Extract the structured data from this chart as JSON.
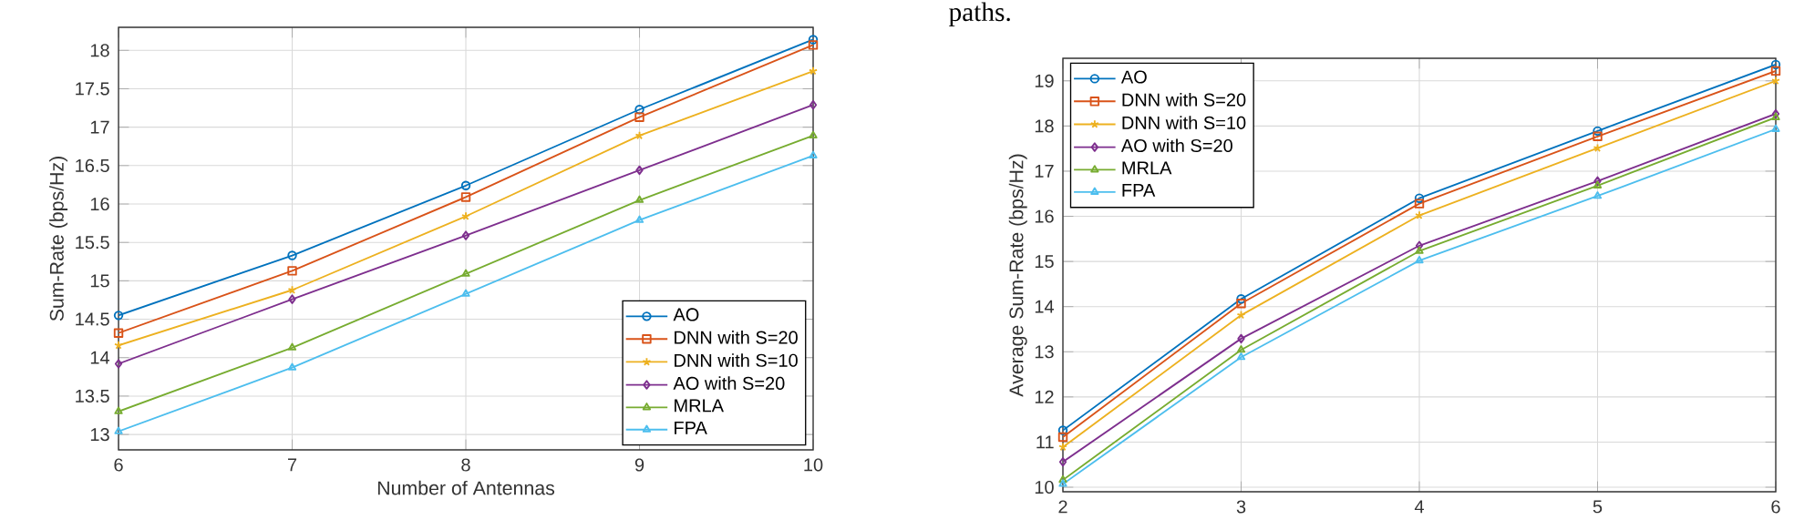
{
  "chart_data": [
    {
      "type": "line",
      "xlabel": "Number of Antennas",
      "ylabel": "Sum-Rate (bps/Hz)",
      "x": [
        6,
        7,
        8,
        9,
        10
      ],
      "xlim": [
        6,
        10
      ],
      "ylim": [
        12.8,
        18.3
      ],
      "xticks": [
        6,
        7,
        8,
        9,
        10
      ],
      "yticks": [
        13,
        13.5,
        14,
        14.5,
        15,
        15.5,
        16,
        16.5,
        17,
        17.5,
        18
      ],
      "grid": true,
      "legend": "bottom right",
      "line_style": "solid",
      "series": [
        {
          "name": "AO",
          "color": "#0072bd",
          "marker": "circle",
          "values": [
            14.55,
            15.33,
            16.24,
            17.23,
            18.14
          ]
        },
        {
          "name": "DNN with S=20",
          "color": "#d95319",
          "marker": "square",
          "values": [
            14.32,
            15.13,
            16.09,
            17.13,
            18.07
          ]
        },
        {
          "name": "DNN with S=10",
          "color": "#edb120",
          "marker": "cross",
          "values": [
            14.16,
            14.88,
            15.84,
            16.89,
            17.73
          ]
        },
        {
          "name": "AO with S=20",
          "color": "#7e2f8e",
          "marker": "diamond",
          "values": [
            13.92,
            14.76,
            15.59,
            16.44,
            17.29
          ]
        },
        {
          "name": "MRLA",
          "color": "#77ac30",
          "marker": "triangle",
          "values": [
            13.3,
            14.13,
            15.09,
            16.05,
            16.89
          ]
        },
        {
          "name": "FPA",
          "color": "#4dbeee",
          "marker": "triangle",
          "values": [
            13.04,
            13.87,
            14.83,
            15.79,
            16.63
          ]
        }
      ]
    },
    {
      "type": "line",
      "ylabel": "Average Sum-Rate (bps/Hz)",
      "annotations": [
        "paths."
      ],
      "x": [
        2,
        3,
        4,
        5,
        6
      ],
      "xlim": [
        2,
        6
      ],
      "ylim": [
        9.9,
        19.5
      ],
      "xticks": [
        2,
        3,
        4,
        5,
        6
      ],
      "yticks": [
        10,
        11,
        12,
        13,
        14,
        15,
        16,
        17,
        18,
        19
      ],
      "grid": true,
      "legend": "top left",
      "line_style": "solid",
      "series": [
        {
          "name": "AO",
          "color": "#0072bd",
          "marker": "circle",
          "values": [
            11.26,
            14.17,
            16.4,
            17.89,
            19.36
          ]
        },
        {
          "name": "DNN with S=20",
          "color": "#d95319",
          "marker": "square",
          "values": [
            11.11,
            14.07,
            16.28,
            17.77,
            19.22
          ]
        },
        {
          "name": "DNN with S=10",
          "color": "#edb120",
          "marker": "cross",
          "values": [
            10.89,
            13.81,
            16.02,
            17.51,
            19.0
          ]
        },
        {
          "name": "AO with S=20",
          "color": "#7e2f8e",
          "marker": "diamond",
          "values": [
            10.56,
            13.29,
            15.35,
            16.78,
            18.27
          ]
        },
        {
          "name": "MRLA",
          "color": "#77ac30",
          "marker": "triangle",
          "values": [
            10.16,
            13.04,
            15.23,
            16.68,
            18.19
          ]
        },
        {
          "name": "FPA",
          "color": "#4dbeee",
          "marker": "triangle",
          "values": [
            10.07,
            12.88,
            15.02,
            16.45,
            17.93
          ]
        }
      ]
    }
  ]
}
